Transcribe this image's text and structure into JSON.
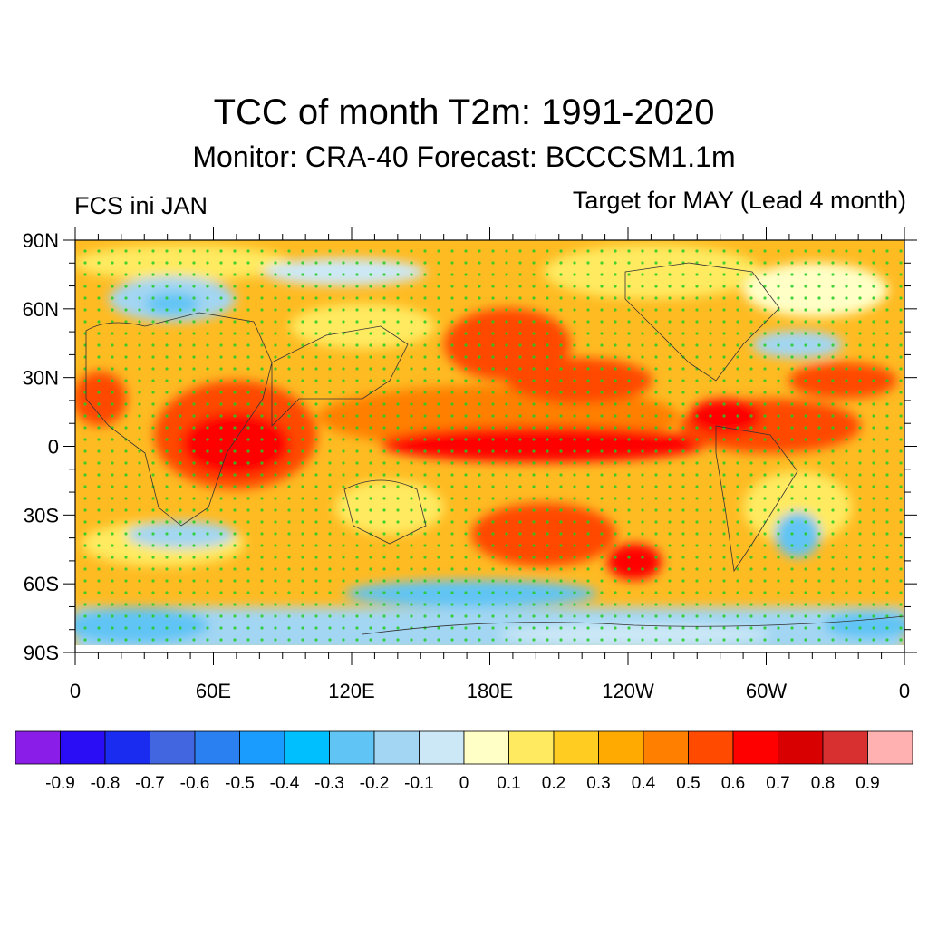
{
  "title": "TCC of month T2m: 1991-2020",
  "subtitle": "Monitor: CRA-40   Forecast: BCCCSM1.1m",
  "left_label": "FCS ini JAN",
  "right_label": "Target for MAY (Lead 4 month)",
  "lat_labels": [
    "90N",
    "60N",
    "30N",
    "0",
    "30S",
    "60S",
    "90S"
  ],
  "lon_labels": [
    "0",
    "60E",
    "120E",
    "180E",
    "120W",
    "60W",
    "0"
  ],
  "colorbar": {
    "colors": [
      "#8a1ee8",
      "#2a0cf5",
      "#1a2cf0",
      "#4266e0",
      "#2a80f0",
      "#1a9cff",
      "#00bfff",
      "#60c4f4",
      "#a2d6f2",
      "#cce8f6",
      "#ffffc6",
      "#ffea60",
      "#ffcc22",
      "#ffaa00",
      "#ff8000",
      "#ff4a00",
      "#ff0000",
      "#d80000",
      "#d83030",
      "#ffb0b0"
    ],
    "labels": [
      "-0.9",
      "-0.8",
      "-0.7",
      "-0.6",
      "-0.5",
      "-0.4",
      "-0.3",
      "-0.2",
      "-0.1",
      "0",
      "0.1",
      "0.2",
      "0.3",
      "0.4",
      "0.5",
      "0.6",
      "0.7",
      "0.8",
      "0.9"
    ]
  }
}
